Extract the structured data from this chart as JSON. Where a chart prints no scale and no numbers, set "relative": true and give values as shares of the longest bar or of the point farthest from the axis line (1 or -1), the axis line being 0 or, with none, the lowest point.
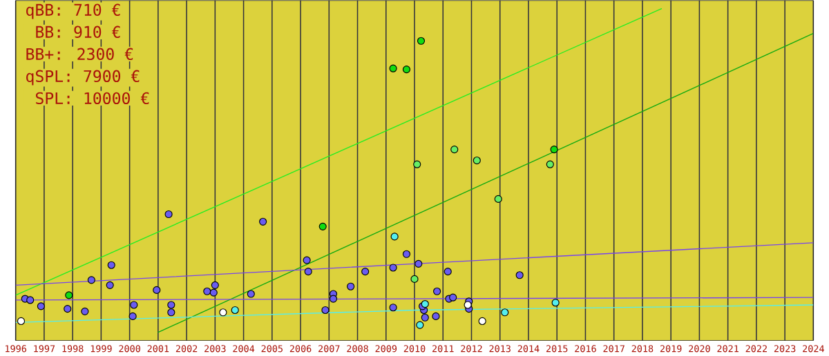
{
  "chart_data": {
    "type": "scatter",
    "relative": true,
    "marker": "circle",
    "grid": "x",
    "xlim": [
      1996,
      2024
    ],
    "xticks": [
      1996,
      1997,
      1998,
      1999,
      2000,
      2001,
      2002,
      2003,
      2004,
      2005,
      2006,
      2007,
      2008,
      2009,
      2010,
      2011,
      2012,
      2013,
      2014,
      2015,
      2016,
      2017,
      2018,
      2019,
      2020,
      2021,
      2022,
      2023,
      2024
    ],
    "annotations": [
      "qBB: 710 €",
      " BB: 910 €",
      "BB+: 2300 €",
      "qSPL: 7900 €",
      " SPL: 10000 €"
    ],
    "series": [
      {
        "color": "#6a5cf0",
        "x": [
          1996.33,
          1996.51,
          1996.89,
          1997.82,
          1998.43,
          1998.66,
          1999.36,
          1999.31,
          2000.15,
          2000.11,
          2000.95,
          2001.46,
          2001.46,
          2001.37,
          2002.72,
          2002.95,
          2003.0,
          2004.26,
          2004.68,
          2006.22,
          2006.27,
          2006.87,
          2007.15,
          2007.15,
          2007.76,
          2008.27,
          2009.25,
          2009.72,
          2009.25,
          2010.14,
          2011.17,
          2010.79,
          2011.21,
          2011.35,
          2010.33,
          2010.28,
          2010.37,
          2010.75,
          2011.91,
          2011.91,
          2013.69
        ],
        "values": [
          0.104,
          0.1,
          0.081,
          0.073,
          0.065,
          0.162,
          0.208,
          0.146,
          0.085,
          0.05,
          0.131,
          0.085,
          0.062,
          0.365,
          0.127,
          0.123,
          0.146,
          0.119,
          0.342,
          0.223,
          0.188,
          0.069,
          0.119,
          0.104,
          0.142,
          0.188,
          0.2,
          0.242,
          0.077,
          0.212,
          0.188,
          0.127,
          0.104,
          0.108,
          0.069,
          0.081,
          0.046,
          0.05,
          0.096,
          0.073,
          0.177
        ]
      },
      {
        "color": "#ffffff",
        "x": [
          1996.19,
          2003.28,
          2011.87,
          2012.38
        ],
        "values": [
          0.035,
          0.062,
          0.085,
          0.035
        ]
      },
      {
        "color": "#55eeee",
        "x": [
          2003.7,
          2010.19,
          2013.17,
          2014.95,
          2010.37,
          2009.3
        ],
        "values": [
          0.069,
          0.023,
          0.062,
          0.092,
          0.088,
          0.296
        ]
      },
      {
        "color": "#11dd11",
        "x": [
          2010.23,
          2009.25,
          2009.72,
          2006.78,
          1997.87,
          2014.9
        ],
        "values": [
          0.9,
          0.815,
          0.812,
          0.327,
          0.115,
          0.565
        ]
      },
      {
        "color": "#66ee66",
        "x": [
          2010.09,
          2011.4,
          2012.19,
          2012.94,
          2014.76,
          2010.0
        ],
        "values": [
          0.519,
          0.565,
          0.531,
          0.412,
          0.519,
          0.165
        ]
      },
      {
        "type": "line",
        "marker": "none",
        "color": "#22ee22",
        "x": [
          1996,
          2018.68
        ],
        "values": [
          0.115,
          1
        ]
      },
      {
        "type": "line",
        "marker": "none",
        "color": "#11aa11",
        "x": [
          2000.99,
          2024
        ],
        "values": [
          0,
          0.923
        ]
      },
      {
        "type": "line",
        "marker": "none",
        "color": "#7744ee",
        "x": [
          1996,
          2010,
          2024
        ],
        "values": [
          0.146,
          0.212,
          0.277
        ]
      },
      {
        "type": "line",
        "marker": "none",
        "color": "#7744ee",
        "x": [
          1996,
          2024
        ],
        "values": [
          0.1,
          0.108
        ]
      },
      {
        "type": "line",
        "marker": "none",
        "color": "#55eeee",
        "x": [
          1996,
          2010,
          2024
        ],
        "values": [
          0.031,
          0.069,
          0.085
        ]
      }
    ]
  }
}
